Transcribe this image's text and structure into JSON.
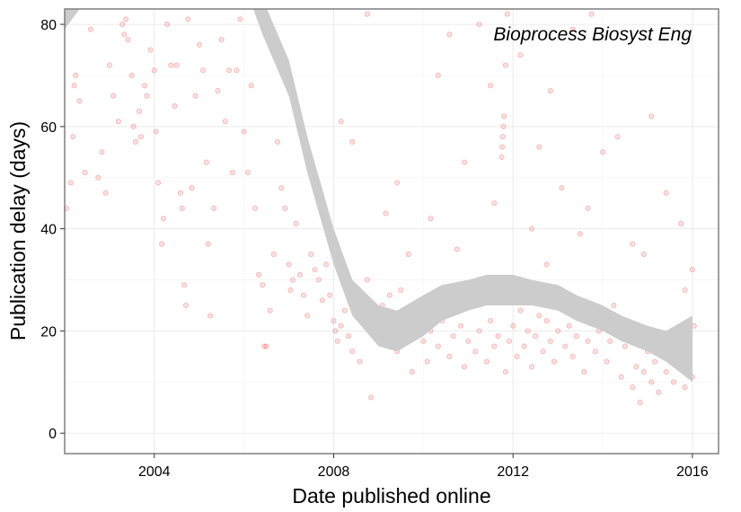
{
  "chart_data": {
    "type": "scatter",
    "title": "",
    "annotation": "Bioprocess Biosyst Eng",
    "xlabel": "Date published online",
    "ylabel": "Publication delay (days)",
    "xlim": [
      "2002-01-01",
      "2016-08-01"
    ],
    "ylim": [
      -4,
      83
    ],
    "x_ticks": [
      {
        "value": "2004-01-01",
        "label": "2004"
      },
      {
        "value": "2008-01-01",
        "label": "2008"
      },
      {
        "value": "2012-01-01",
        "label": "2012"
      },
      {
        "value": "2016-01-01",
        "label": "2016"
      }
    ],
    "y_ticks": [
      {
        "value": 0,
        "label": "0"
      },
      {
        "value": 20,
        "label": "20"
      },
      {
        "value": 40,
        "label": "40"
      },
      {
        "value": 60,
        "label": "60"
      },
      {
        "value": 80,
        "label": "80"
      }
    ],
    "grid": true,
    "point_color": "#e31a1c",
    "band_color": "#cccccc",
    "points": [
      [
        "2002-01-15",
        44
      ],
      [
        "2002-02-20",
        49
      ],
      [
        "2002-03-10",
        58
      ],
      [
        "2002-03-20",
        68
      ],
      [
        "2002-04-01",
        70
      ],
      [
        "2002-05-01",
        65
      ],
      [
        "2002-06-15",
        51
      ],
      [
        "2002-08-01",
        79
      ],
      [
        "2002-10-01",
        50
      ],
      [
        "2002-11-01",
        55
      ],
      [
        "2002-12-01",
        47
      ],
      [
        "2003-01-01",
        72
      ],
      [
        "2003-02-01",
        66
      ],
      [
        "2003-03-15",
        61
      ],
      [
        "2003-04-15",
        80
      ],
      [
        "2003-05-01",
        78
      ],
      [
        "2003-05-15",
        81
      ],
      [
        "2003-06-01",
        77
      ],
      [
        "2003-07-01",
        70
      ],
      [
        "2003-07-15",
        60
      ],
      [
        "2003-08-01",
        57
      ],
      [
        "2003-09-01",
        63
      ],
      [
        "2003-09-15",
        58
      ],
      [
        "2003-10-15",
        68
      ],
      [
        "2003-11-01",
        66
      ],
      [
        "2003-12-01",
        75
      ],
      [
        "2004-01-01",
        71
      ],
      [
        "2004-01-15",
        59
      ],
      [
        "2004-02-01",
        49
      ],
      [
        "2004-03-01",
        37
      ],
      [
        "2004-03-15",
        42
      ],
      [
        "2004-04-15",
        80
      ],
      [
        "2004-05-15",
        72
      ],
      [
        "2004-06-15",
        64
      ],
      [
        "2004-07-01",
        72
      ],
      [
        "2004-08-01",
        47
      ],
      [
        "2004-08-15",
        44
      ],
      [
        "2004-09-01",
        29
      ],
      [
        "2004-09-15",
        25
      ],
      [
        "2004-10-01",
        81
      ],
      [
        "2004-11-01",
        48
      ],
      [
        "2004-12-01",
        66
      ],
      [
        "2005-01-01",
        76
      ],
      [
        "2005-02-01",
        71
      ],
      [
        "2005-03-01",
        53
      ],
      [
        "2005-03-15",
        37
      ],
      [
        "2005-04-01",
        23
      ],
      [
        "2005-05-01",
        44
      ],
      [
        "2005-06-01",
        67
      ],
      [
        "2005-07-01",
        77
      ],
      [
        "2005-08-01",
        61
      ],
      [
        "2005-09-01",
        71
      ],
      [
        "2005-10-01",
        51
      ],
      [
        "2005-11-01",
        71
      ],
      [
        "2005-12-01",
        81
      ],
      [
        "2006-01-01",
        59
      ],
      [
        "2006-02-01",
        51
      ],
      [
        "2006-03-01",
        68
      ],
      [
        "2006-04-01",
        44
      ],
      [
        "2006-05-01",
        31
      ],
      [
        "2006-06-01",
        29
      ],
      [
        "2006-06-15",
        17
      ],
      [
        "2006-07-01",
        17
      ],
      [
        "2006-08-01",
        24
      ],
      [
        "2006-09-01",
        35
      ],
      [
        "2006-10-01",
        57
      ],
      [
        "2006-11-01",
        48
      ],
      [
        "2006-12-01",
        44
      ],
      [
        "2007-01-01",
        33
      ],
      [
        "2007-01-15",
        28
      ],
      [
        "2007-02-01",
        30
      ],
      [
        "2007-03-01",
        41
      ],
      [
        "2007-04-01",
        31
      ],
      [
        "2007-05-01",
        27
      ],
      [
        "2007-06-01",
        23
      ],
      [
        "2007-07-01",
        35
      ],
      [
        "2007-08-01",
        32
      ],
      [
        "2007-09-01",
        30
      ],
      [
        "2007-10-01",
        26
      ],
      [
        "2007-11-01",
        33
      ],
      [
        "2007-12-01",
        27
      ],
      [
        "2008-01-01",
        22
      ],
      [
        "2008-01-15",
        20
      ],
      [
        "2008-02-01",
        18
      ],
      [
        "2008-03-01",
        21
      ],
      [
        "2008-04-01",
        24
      ],
      [
        "2008-05-01",
        19
      ],
      [
        "2008-06-01",
        16
      ],
      [
        "2008-07-01",
        23
      ],
      [
        "2008-08-01",
        14
      ],
      [
        "2008-09-01",
        26
      ],
      [
        "2008-10-01",
        30
      ],
      [
        "2008-11-01",
        7
      ],
      [
        "2008-12-01",
        21
      ],
      [
        "2009-01-01",
        18
      ],
      [
        "2009-02-01",
        25
      ],
      [
        "2009-03-01",
        22
      ],
      [
        "2009-04-01",
        27
      ],
      [
        "2009-05-01",
        20
      ],
      [
        "2009-06-01",
        16
      ],
      [
        "2009-07-01",
        28
      ],
      [
        "2009-08-01",
        19
      ],
      [
        "2009-09-01",
        23
      ],
      [
        "2009-10-01",
        12
      ],
      [
        "2009-11-01",
        21
      ],
      [
        "2009-12-01",
        25
      ],
      [
        "2010-01-01",
        18
      ],
      [
        "2010-02-01",
        14
      ],
      [
        "2010-03-01",
        20
      ],
      [
        "2010-04-01",
        26
      ],
      [
        "2010-05-01",
        17
      ],
      [
        "2010-06-01",
        22
      ],
      [
        "2010-07-01",
        28
      ],
      [
        "2010-08-01",
        15
      ],
      [
        "2010-09-01",
        19
      ],
      [
        "2010-10-01",
        24
      ],
      [
        "2010-11-01",
        21
      ],
      [
        "2010-12-01",
        13
      ],
      [
        "2011-01-01",
        18
      ],
      [
        "2011-02-01",
        25
      ],
      [
        "2011-03-01",
        16
      ],
      [
        "2011-04-01",
        20
      ],
      [
        "2011-05-01",
        27
      ],
      [
        "2011-06-01",
        14
      ],
      [
        "2011-07-01",
        22
      ],
      [
        "2011-08-01",
        17
      ],
      [
        "2011-09-01",
        19
      ],
      [
        "2011-10-01",
        54
      ],
      [
        "2011-10-05",
        56
      ],
      [
        "2011-10-10",
        58
      ],
      [
        "2011-10-15",
        60
      ],
      [
        "2011-10-20",
        62
      ],
      [
        "2011-11-01",
        12
      ],
      [
        "2011-12-01",
        18
      ],
      [
        "2012-01-01",
        21
      ],
      [
        "2012-02-01",
        15
      ],
      [
        "2012-03-01",
        24
      ],
      [
        "2012-04-01",
        17
      ],
      [
        "2012-05-01",
        20
      ],
      [
        "2012-06-01",
        13
      ],
      [
        "2012-07-01",
        19
      ],
      [
        "2012-08-01",
        23
      ],
      [
        "2012-09-01",
        16
      ],
      [
        "2012-10-01",
        22
      ],
      [
        "2012-11-01",
        18
      ],
      [
        "2012-12-01",
        14
      ],
      [
        "2013-01-01",
        20
      ],
      [
        "2013-02-01",
        25
      ],
      [
        "2013-03-01",
        17
      ],
      [
        "2013-04-01",
        21
      ],
      [
        "2013-05-01",
        15
      ],
      [
        "2013-06-01",
        19
      ],
      [
        "2013-07-01",
        23
      ],
      [
        "2013-08-01",
        12
      ],
      [
        "2013-09-01",
        18
      ],
      [
        "2013-10-01",
        24
      ],
      [
        "2013-11-01",
        16
      ],
      [
        "2013-12-01",
        20
      ],
      [
        "2014-01-01",
        22
      ],
      [
        "2014-02-01",
        14
      ],
      [
        "2014-03-01",
        18
      ],
      [
        "2014-04-01",
        25
      ],
      [
        "2014-05-01",
        21
      ],
      [
        "2014-06-01",
        11
      ],
      [
        "2014-07-01",
        17
      ],
      [
        "2014-08-01",
        20
      ],
      [
        "2014-09-01",
        9
      ],
      [
        "2014-10-01",
        13
      ],
      [
        "2014-11-01",
        6
      ],
      [
        "2014-12-01",
        12
      ],
      [
        "2015-01-01",
        16
      ],
      [
        "2015-02-01",
        10
      ],
      [
        "2015-03-01",
        14
      ],
      [
        "2015-04-01",
        8
      ],
      [
        "2015-05-01",
        18
      ],
      [
        "2015-06-01",
        12
      ],
      [
        "2015-07-01",
        15
      ],
      [
        "2015-08-01",
        10
      ],
      [
        "2015-09-01",
        19
      ],
      [
        "2015-10-01",
        13
      ],
      [
        "2015-11-01",
        9
      ],
      [
        "2015-12-01",
        16
      ],
      [
        "2016-01-01",
        11
      ],
      [
        "2016-01-15",
        21
      ],
      [
        "2008-03-01",
        61
      ],
      [
        "2008-06-01",
        57
      ],
      [
        "2009-03-01",
        43
      ],
      [
        "2009-09-01",
        35
      ],
      [
        "2010-05-01",
        70
      ],
      [
        "2010-08-01",
        78
      ],
      [
        "2010-12-01",
        53
      ],
      [
        "2011-04-01",
        80
      ],
      [
        "2011-07-01",
        68
      ],
      [
        "2011-11-01",
        72
      ],
      [
        "2012-03-01",
        74
      ],
      [
        "2012-08-01",
        56
      ],
      [
        "2012-11-01",
        67
      ],
      [
        "2013-02-01",
        48
      ],
      [
        "2013-05-01",
        79
      ],
      [
        "2013-09-01",
        44
      ],
      [
        "2014-01-01",
        55
      ],
      [
        "2014-05-01",
        58
      ],
      [
        "2014-09-01",
        37
      ],
      [
        "2015-02-01",
        62
      ],
      [
        "2015-06-01",
        47
      ],
      [
        "2015-10-01",
        41
      ],
      [
        "2016-01-01",
        32
      ],
      [
        "2011-08-01",
        45
      ],
      [
        "2010-03-01",
        42
      ],
      [
        "2009-06-01",
        49
      ],
      [
        "2012-06-01",
        40
      ],
      [
        "2013-07-01",
        39
      ],
      [
        "2014-12-01",
        35
      ],
      [
        "2015-11-01",
        28
      ],
      [
        "2008-10-01",
        82
      ],
      [
        "2011-11-15",
        82
      ],
      [
        "2013-10-01",
        82
      ],
      [
        "2012-10-01",
        33
      ],
      [
        "2010-10-01",
        36
      ]
    ],
    "smooth_band": [
      [
        "2002-01-01",
        79,
        92
      ],
      [
        "2002-04-01",
        82,
        95
      ],
      [
        "2002-08-01",
        86,
        100
      ],
      [
        "2006-01-01",
        88,
        95
      ],
      [
        "2006-06-01",
        78,
        85
      ],
      [
        "2007-01-01",
        66,
        73
      ],
      [
        "2007-06-01",
        51,
        58
      ],
      [
        "2008-01-01",
        33,
        40
      ],
      [
        "2008-06-01",
        23,
        30
      ],
      [
        "2009-01-01",
        17,
        25
      ],
      [
        "2009-06-01",
        16,
        24
      ],
      [
        "2010-01-01",
        19,
        27
      ],
      [
        "2010-06-01",
        22,
        29
      ],
      [
        "2011-01-01",
        24,
        30
      ],
      [
        "2011-06-01",
        25,
        31
      ],
      [
        "2012-01-01",
        25,
        31
      ],
      [
        "2012-06-01",
        25,
        30
      ],
      [
        "2013-01-01",
        24,
        29
      ],
      [
        "2013-06-01",
        22,
        27
      ],
      [
        "2014-01-01",
        20,
        25
      ],
      [
        "2014-06-01",
        18,
        23
      ],
      [
        "2015-01-01",
        16,
        21
      ],
      [
        "2015-06-01",
        14,
        20
      ],
      [
        "2016-01-01",
        10,
        23
      ]
    ]
  }
}
